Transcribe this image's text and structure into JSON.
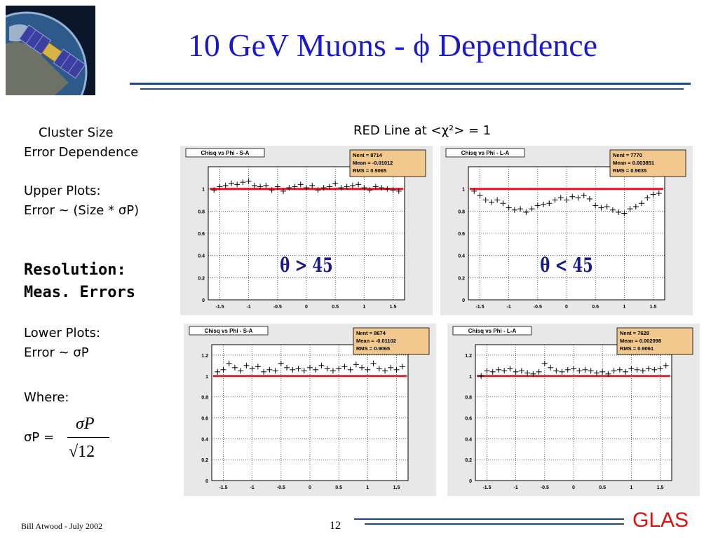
{
  "slide": {
    "title": "10 GeV Muons - ϕ Dependence",
    "red_line_note": "RED Line at <χ²> = 1",
    "left_text": {
      "line1": "Cluster Size",
      "line2": "Error Dependence",
      "upper_plots": "Upper Plots:",
      "upper_error": "Error ~ (Size * σP)",
      "resolution": "Resolution:",
      "meas_errors": "Meas. Errors",
      "lower_plots": "Lower Plots:",
      "lower_error": "Error ~ σP",
      "where": "Where:",
      "sigma_lhs": "σP  =",
      "sigma_num": "σP",
      "sigma_den": "√12"
    },
    "footer": {
      "author": "Bill Atwood  - July 2002",
      "page": "12",
      "logo": "GLAS"
    }
  },
  "chart_data": [
    {
      "type": "scatter",
      "title": "Chisq vs Phi - S-A",
      "stats": [
        "Nent = 8714",
        "Mean  = -0.01012",
        "RMS   = 0.9065"
      ],
      "annotation": "θ > 45",
      "xlim": [
        -1.7,
        1.7
      ],
      "ylim": [
        0,
        1.2
      ],
      "xticks": [
        "-1.5",
        "-1",
        "-0.5",
        "0",
        "0.5",
        "1",
        "1.5"
      ],
      "xtick_values": [
        -1.5,
        -1,
        -0.5,
        0,
        0.5,
        1,
        1.5
      ],
      "yticks": [
        "0",
        "0.2",
        "0.4",
        "0.6",
        "0.8",
        "1"
      ],
      "ytick_values": [
        0,
        0.2,
        0.4,
        0.6,
        0.8,
        1
      ],
      "red_line": 1,
      "x": [
        -1.6,
        -1.5,
        -1.4,
        -1.3,
        -1.2,
        -1.1,
        -1.0,
        -0.9,
        -0.8,
        -0.7,
        -0.6,
        -0.5,
        -0.4,
        -0.3,
        -0.2,
        -0.1,
        0.0,
        0.1,
        0.2,
        0.3,
        0.4,
        0.5,
        0.6,
        0.7,
        0.8,
        0.9,
        1.0,
        1.1,
        1.2,
        1.3,
        1.4,
        1.5,
        1.6
      ],
      "y": [
        0.99,
        1.02,
        1.03,
        1.05,
        1.04,
        1.06,
        1.07,
        1.03,
        1.02,
        1.03,
        0.99,
        1.02,
        0.98,
        1.01,
        1.02,
        1.04,
        1.01,
        1.03,
        0.99,
        1.01,
        1.02,
        1.05,
        1.01,
        1.02,
        1.03,
        1.04,
        1.01,
        0.99,
        1.02,
        1.01,
        1.0,
        0.99,
        0.98
      ]
    },
    {
      "type": "scatter",
      "title": "Chisq vs Phi - L-A",
      "stats": [
        "Nent = 7770",
        "Mean  = 0.003851",
        "RMS   = 0.9035"
      ],
      "annotation": "θ < 45",
      "xlim": [
        -1.7,
        1.7
      ],
      "ylim": [
        0,
        1.2
      ],
      "xticks": [
        "-1.5",
        "-1",
        "-0.5",
        "0",
        "0.5",
        "1",
        "1.5"
      ],
      "xtick_values": [
        -1.5,
        -1,
        -0.5,
        0,
        0.5,
        1,
        1.5
      ],
      "yticks": [
        "0",
        "0.2",
        "0.4",
        "0.6",
        "0.8",
        "1"
      ],
      "ytick_values": [
        0,
        0.2,
        0.4,
        0.6,
        0.8,
        1
      ],
      "red_line": 1,
      "x": [
        -1.6,
        -1.5,
        -1.4,
        -1.3,
        -1.2,
        -1.1,
        -1.0,
        -0.9,
        -0.8,
        -0.7,
        -0.6,
        -0.5,
        -0.4,
        -0.3,
        -0.2,
        -0.1,
        0.0,
        0.1,
        0.2,
        0.3,
        0.4,
        0.5,
        0.6,
        0.7,
        0.8,
        0.9,
        1.0,
        1.1,
        1.2,
        1.3,
        1.4,
        1.5,
        1.6
      ],
      "y": [
        0.98,
        0.94,
        0.9,
        0.88,
        0.9,
        0.87,
        0.83,
        0.81,
        0.82,
        0.79,
        0.82,
        0.85,
        0.86,
        0.87,
        0.9,
        0.92,
        0.9,
        0.93,
        0.92,
        0.94,
        0.91,
        0.85,
        0.83,
        0.84,
        0.81,
        0.79,
        0.78,
        0.82,
        0.84,
        0.87,
        0.92,
        0.95,
        0.96
      ]
    },
    {
      "type": "scatter",
      "title": "Chisq vs Phi - S-A",
      "stats": [
        "Nent = 8674",
        "Mean  = -0.01102",
        "RMS   = 0.9065"
      ],
      "xlim": [
        -1.7,
        1.7
      ],
      "ylim": [
        0,
        1.3
      ],
      "xticks": [
        "-1.5",
        "-1",
        "-0.5",
        "0",
        "0.5",
        "1",
        "1.5"
      ],
      "xtick_values": [
        -1.5,
        -1,
        -0.5,
        0,
        0.5,
        1,
        1.5
      ],
      "yticks": [
        "0",
        "0.2",
        "0.4",
        "0.6",
        "0.8",
        "1",
        "1.2"
      ],
      "ytick_values": [
        0,
        0.2,
        0.4,
        0.6,
        0.8,
        1,
        1.2
      ],
      "red_line": 1,
      "x": [
        -1.6,
        -1.5,
        -1.4,
        -1.3,
        -1.2,
        -1.1,
        -1.0,
        -0.9,
        -0.8,
        -0.7,
        -0.6,
        -0.5,
        -0.4,
        -0.3,
        -0.2,
        -0.1,
        0.0,
        0.1,
        0.2,
        0.3,
        0.4,
        0.5,
        0.6,
        0.7,
        0.8,
        0.9,
        1.0,
        1.1,
        1.2,
        1.3,
        1.4,
        1.5,
        1.6
      ],
      "y": [
        1.04,
        1.06,
        1.12,
        1.08,
        1.05,
        1.1,
        1.07,
        1.09,
        1.04,
        1.06,
        1.05,
        1.12,
        1.08,
        1.06,
        1.07,
        1.05,
        1.08,
        1.06,
        1.1,
        1.07,
        1.05,
        1.07,
        1.09,
        1.06,
        1.11,
        1.08,
        1.06,
        1.12,
        1.07,
        1.05,
        1.08,
        1.06,
        1.09
      ]
    },
    {
      "type": "scatter",
      "title": "Chisq vs Phi - L-A",
      "stats": [
        "Nent = 7628",
        "Mean  = 0.002098",
        "RMS   = 0.9061"
      ],
      "xlim": [
        -1.7,
        1.7
      ],
      "ylim": [
        0,
        1.3
      ],
      "xticks": [
        "-1.5",
        "-1",
        "-0.5",
        "0",
        "0.5",
        "1",
        "1.5"
      ],
      "xtick_values": [
        -1.5,
        -1,
        -0.5,
        0,
        0.5,
        1,
        1.5
      ],
      "yticks": [
        "0",
        "0.2",
        "0.4",
        "0.6",
        "0.8",
        "1",
        "1.2"
      ],
      "ytick_values": [
        0,
        0.2,
        0.4,
        0.6,
        0.8,
        1,
        1.2
      ],
      "red_line": 1,
      "x": [
        -1.6,
        -1.5,
        -1.4,
        -1.3,
        -1.2,
        -1.1,
        -1.0,
        -0.9,
        -0.8,
        -0.7,
        -0.6,
        -0.5,
        -0.4,
        -0.3,
        -0.2,
        -0.1,
        0.0,
        0.1,
        0.2,
        0.3,
        0.4,
        0.5,
        0.6,
        0.7,
        0.8,
        0.9,
        1.0,
        1.1,
        1.2,
        1.3,
        1.4,
        1.5,
        1.6
      ],
      "y": [
        1.0,
        1.05,
        1.04,
        1.06,
        1.05,
        1.07,
        1.04,
        1.05,
        1.03,
        1.02,
        1.04,
        1.12,
        1.08,
        1.05,
        1.04,
        1.06,
        1.07,
        1.05,
        1.06,
        1.05,
        1.03,
        1.04,
        1.02,
        1.05,
        1.06,
        1.04,
        1.07,
        1.06,
        1.05,
        1.07,
        1.06,
        1.07,
        1.1
      ]
    }
  ]
}
